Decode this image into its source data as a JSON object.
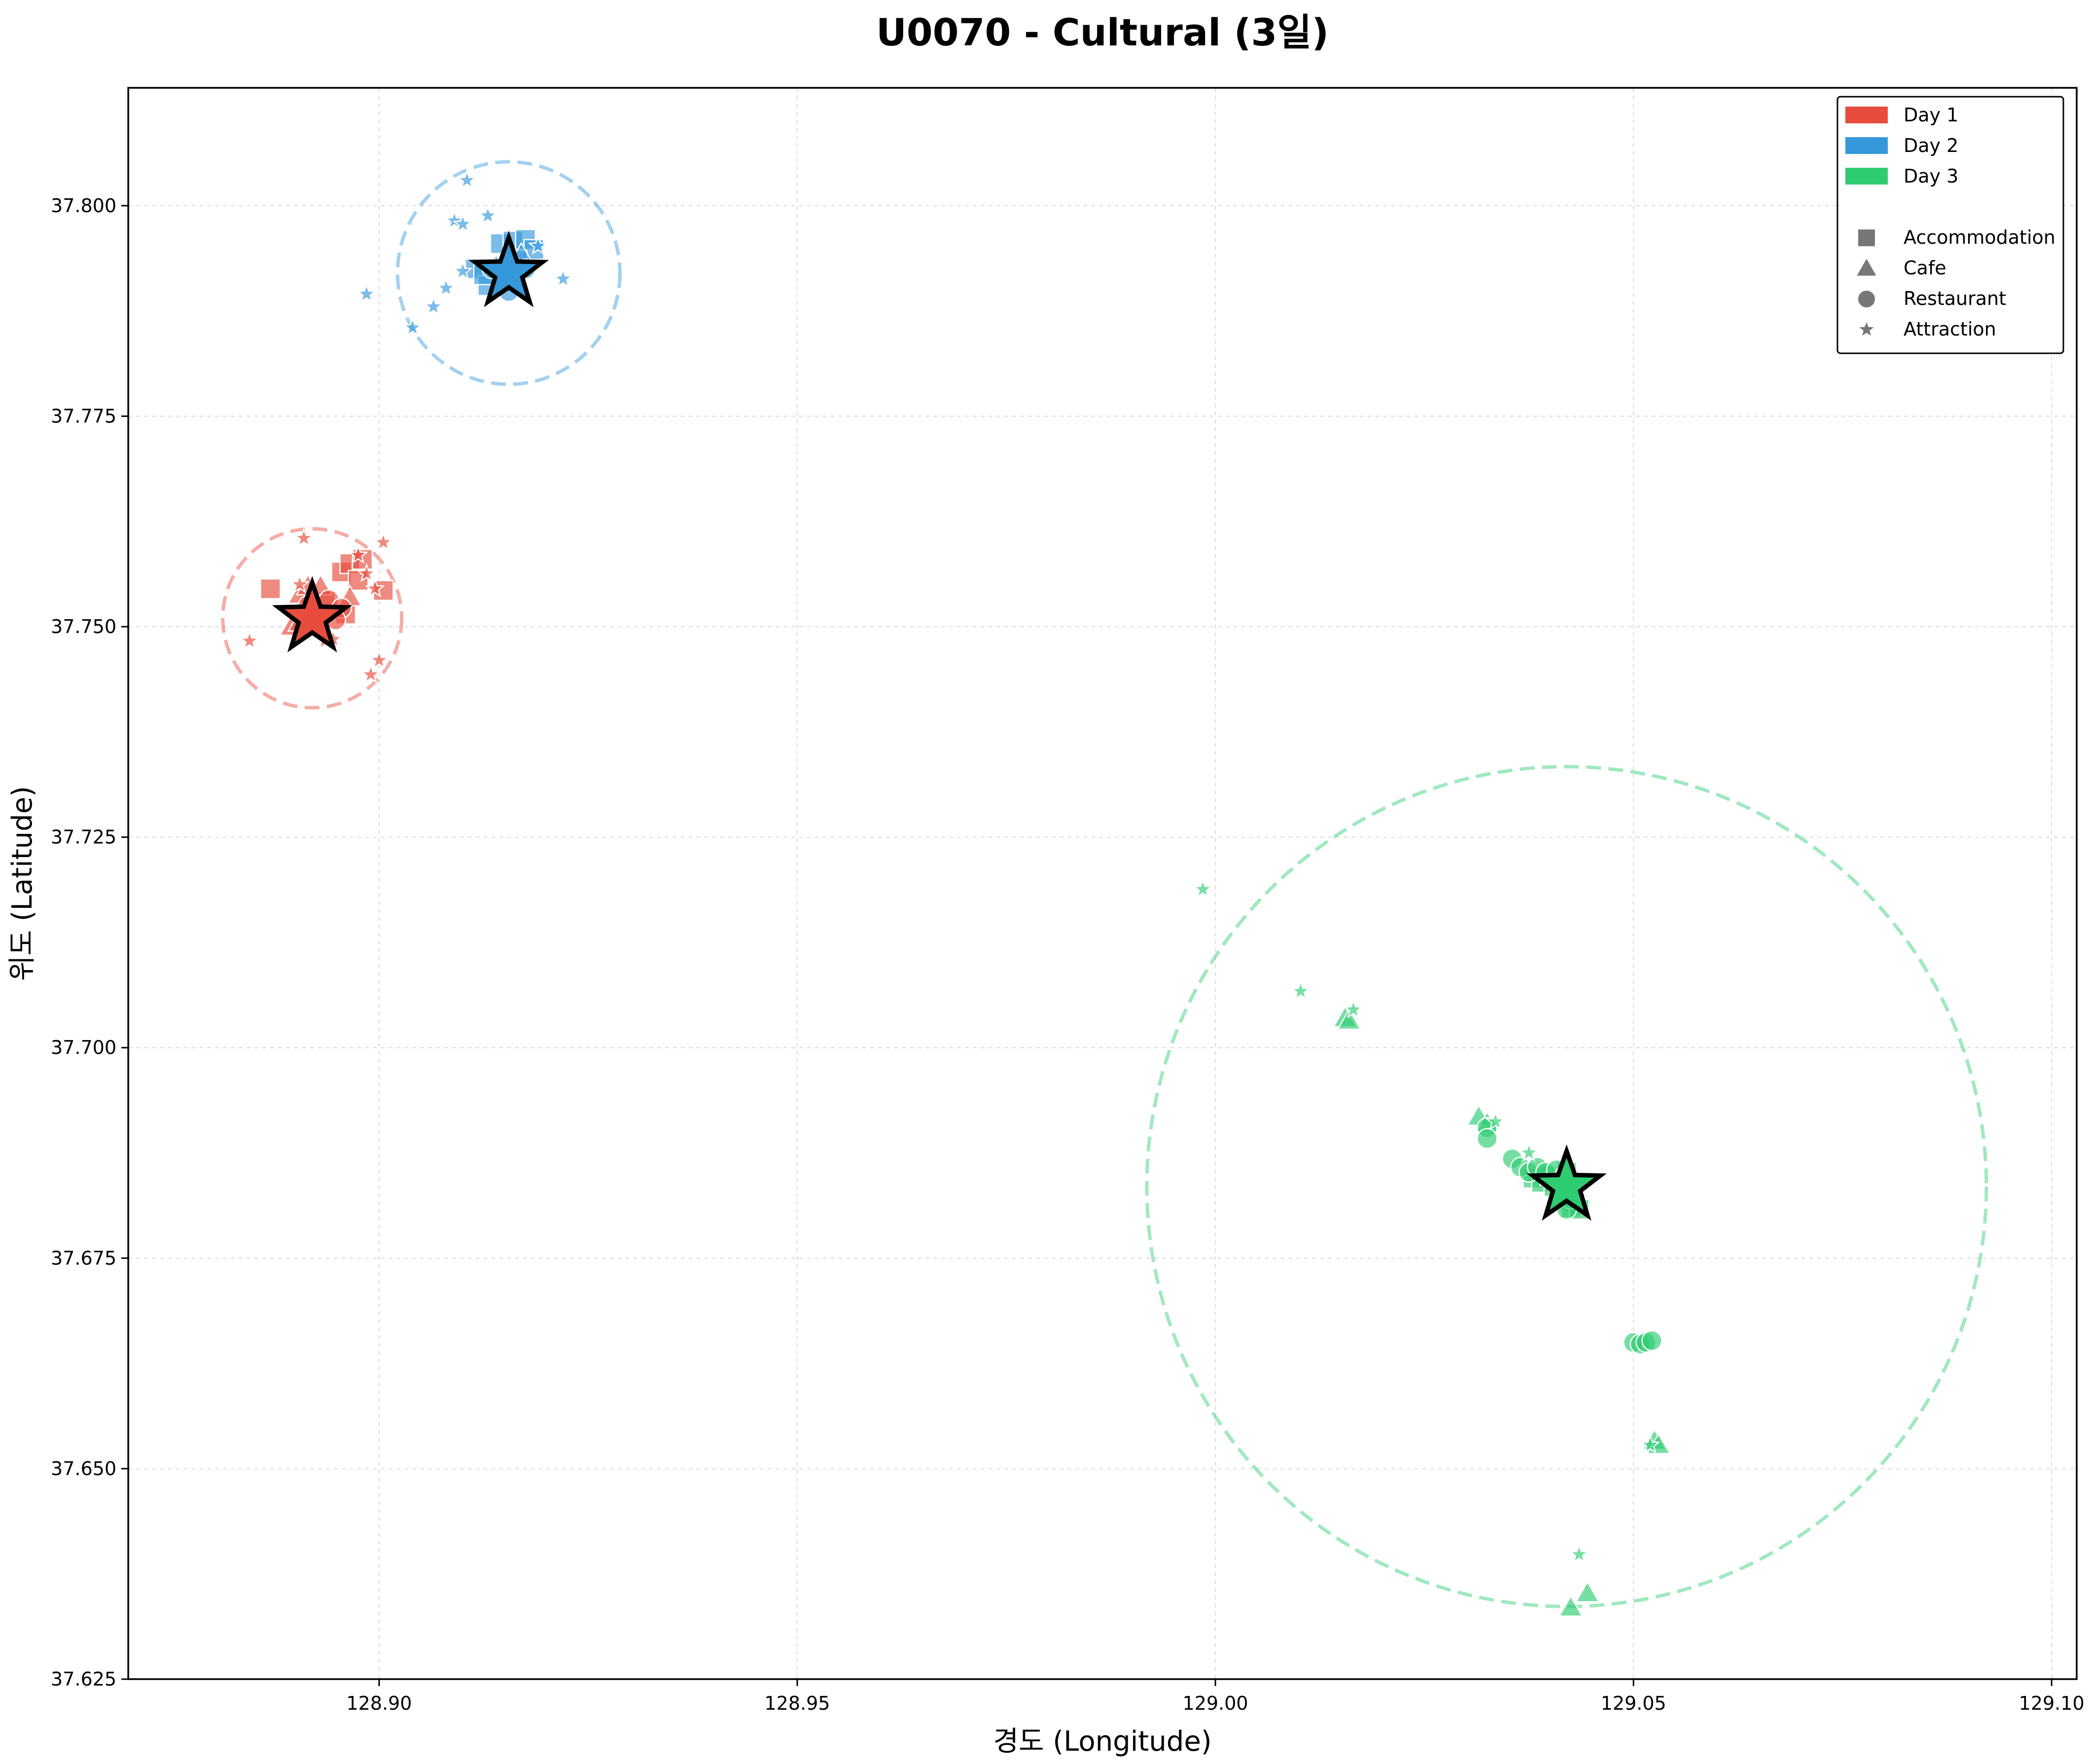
{
  "chart_data": {
    "type": "scatter",
    "title": "U0070 - Cultural (3일)",
    "xlabel": "경도 (Longitude)",
    "ylabel": "위도 (Latitude)",
    "xlim": [
      128.87,
      129.103
    ],
    "ylim": [
      37.625,
      37.814
    ],
    "x_ticks": [
      128.9,
      128.95,
      129.0,
      129.05,
      129.1
    ],
    "x_tick_labels": [
      "128.90",
      "128.95",
      "129.00",
      "129.05",
      "129.10"
    ],
    "y_ticks": [
      37.625,
      37.65,
      37.675,
      37.7,
      37.725,
      37.75,
      37.775,
      37.8
    ],
    "y_tick_labels": [
      "37.625",
      "37.650",
      "37.675",
      "37.700",
      "37.725",
      "37.750",
      "37.775",
      "37.800"
    ],
    "grid": true,
    "legend_position": "top-right",
    "legend": {
      "days": [
        {
          "label": "Day 1",
          "color": "#e74c3c"
        },
        {
          "label": "Day 2",
          "color": "#3498db"
        },
        {
          "label": "Day 3",
          "color": "#2ecc71"
        }
      ],
      "categories": [
        {
          "label": "Accommodation",
          "marker": "square"
        },
        {
          "label": "Cafe",
          "marker": "triangle"
        },
        {
          "label": "Restaurant",
          "marker": "circle"
        },
        {
          "label": "Attraction",
          "marker": "star"
        }
      ]
    },
    "series": [
      {
        "name": "Day 1",
        "color": "#e74c3c",
        "center": [
          128.892,
          37.751
        ],
        "radius_deg": 0.0107,
        "points": [
          {
            "cat": "Accommodation",
            "x": 128.887,
            "y": 37.7545
          },
          {
            "cat": "Accommodation",
            "x": 128.8955,
            "y": 37.7565
          },
          {
            "cat": "Accommodation",
            "x": 128.8965,
            "y": 37.7575
          },
          {
            "cat": "Accommodation",
            "x": 128.898,
            "y": 37.758
          },
          {
            "cat": "Accommodation",
            "x": 128.8975,
            "y": 37.7555
          },
          {
            "cat": "Accommodation",
            "x": 128.9005,
            "y": 37.7543
          },
          {
            "cat": "Accommodation",
            "x": 128.896,
            "y": 37.7515
          },
          {
            "cat": "Accommodation",
            "x": 128.8935,
            "y": 37.753
          },
          {
            "cat": "Cafe",
            "x": 128.8905,
            "y": 37.7538
          },
          {
            "cat": "Cafe",
            "x": 128.8915,
            "y": 37.7548
          },
          {
            "cat": "Cafe",
            "x": 128.893,
            "y": 37.7548
          },
          {
            "cat": "Cafe",
            "x": 128.8965,
            "y": 37.7535
          },
          {
            "cat": "Cafe",
            "x": 128.8895,
            "y": 37.75
          },
          {
            "cat": "Cafe",
            "x": 128.8905,
            "y": 37.7505
          },
          {
            "cat": "Restaurant",
            "x": 128.894,
            "y": 37.7532
          },
          {
            "cat": "Restaurant",
            "x": 128.8955,
            "y": 37.7522
          },
          {
            "cat": "Restaurant",
            "x": 128.8925,
            "y": 37.7515
          },
          {
            "cat": "Restaurant",
            "x": 128.8915,
            "y": 37.7525
          },
          {
            "cat": "Restaurant",
            "x": 128.8948,
            "y": 37.7508
          },
          {
            "cat": "Attraction",
            "x": 128.891,
            "y": 37.7605
          },
          {
            "cat": "Attraction",
            "x": 128.8975,
            "y": 37.7585
          },
          {
            "cat": "Attraction",
            "x": 128.9005,
            "y": 37.76
          },
          {
            "cat": "Attraction",
            "x": 128.8985,
            "y": 37.7563
          },
          {
            "cat": "Attraction",
            "x": 128.8995,
            "y": 37.7545
          },
          {
            "cat": "Attraction",
            "x": 128.8845,
            "y": 37.7483
          },
          {
            "cat": "Attraction",
            "x": 128.8935,
            "y": 37.7483
          },
          {
            "cat": "Attraction",
            "x": 128.8945,
            "y": 37.7485
          },
          {
            "cat": "Attraction",
            "x": 128.9,
            "y": 37.746
          },
          {
            "cat": "Attraction",
            "x": 128.899,
            "y": 37.7443
          },
          {
            "cat": "Attraction",
            "x": 128.8905,
            "y": 37.755
          }
        ]
      },
      {
        "name": "Day 2",
        "color": "#3498db",
        "center": [
          128.9155,
          37.792
        ],
        "radius_deg": 0.0133,
        "points": [
          {
            "cat": "Accommodation",
            "x": 128.9115,
            "y": 37.7925
          },
          {
            "cat": "Accommodation",
            "x": 128.913,
            "y": 37.7905
          },
          {
            "cat": "Accommodation",
            "x": 128.9145,
            "y": 37.7955
          },
          {
            "cat": "Accommodation",
            "x": 128.916,
            "y": 37.7958
          },
          {
            "cat": "Accommodation",
            "x": 128.9175,
            "y": 37.796
          },
          {
            "cat": "Accommodation",
            "x": 128.9185,
            "y": 37.7948
          },
          {
            "cat": "Accommodation",
            "x": 128.9165,
            "y": 37.7935
          },
          {
            "cat": "Accommodation",
            "x": 128.9125,
            "y": 37.7918
          },
          {
            "cat": "Cafe",
            "x": 128.9155,
            "y": 37.7945
          },
          {
            "cat": "Cafe",
            "x": 128.917,
            "y": 37.7942
          },
          {
            "cat": "Cafe",
            "x": 128.914,
            "y": 37.7928
          },
          {
            "cat": "Restaurant",
            "x": 128.9135,
            "y": 37.7925
          },
          {
            "cat": "Restaurant",
            "x": 128.915,
            "y": 37.7912
          },
          {
            "cat": "Restaurant",
            "x": 128.9155,
            "y": 37.7898
          },
          {
            "cat": "Restaurant",
            "x": 128.9175,
            "y": 37.7925
          },
          {
            "cat": "Attraction",
            "x": 128.9105,
            "y": 37.803
          },
          {
            "cat": "Attraction",
            "x": 128.913,
            "y": 37.7988
          },
          {
            "cat": "Attraction",
            "x": 128.909,
            "y": 37.7982
          },
          {
            "cat": "Attraction",
            "x": 128.91,
            "y": 37.7978
          },
          {
            "cat": "Attraction",
            "x": 128.8985,
            "y": 37.7895
          },
          {
            "cat": "Attraction",
            "x": 128.904,
            "y": 37.7855
          },
          {
            "cat": "Attraction",
            "x": 128.9065,
            "y": 37.788
          },
          {
            "cat": "Attraction",
            "x": 128.908,
            "y": 37.7902
          },
          {
            "cat": "Attraction",
            "x": 128.91,
            "y": 37.7922
          },
          {
            "cat": "Attraction",
            "x": 128.919,
            "y": 37.7952
          },
          {
            "cat": "Attraction",
            "x": 128.922,
            "y": 37.7913
          }
        ]
      },
      {
        "name": "Day 3",
        "color": "#2ecc71",
        "center": [
          129.042,
          37.6835
        ],
        "radius_deg": 0.0502,
        "points": [
          {
            "cat": "Accommodation",
            "x": 129.038,
            "y": 37.6845
          },
          {
            "cat": "Accommodation",
            "x": 129.039,
            "y": 37.684
          },
          {
            "cat": "Accommodation",
            "x": 129.04,
            "y": 37.6848
          },
          {
            "cat": "Accommodation",
            "x": 129.041,
            "y": 37.684
          },
          {
            "cat": "Accommodation",
            "x": 129.042,
            "y": 37.6852
          },
          {
            "cat": "Accommodation",
            "x": 129.042,
            "y": 37.6838
          },
          {
            "cat": "Accommodation",
            "x": 129.043,
            "y": 37.6815
          },
          {
            "cat": "Accommodation",
            "x": 129.0425,
            "y": 37.681
          },
          {
            "cat": "Accommodation",
            "x": 129.0435,
            "y": 37.6808
          },
          {
            "cat": "Accommodation",
            "x": 129.0405,
            "y": 37.6835
          },
          {
            "cat": "Cafe",
            "x": 129.0315,
            "y": 37.6918
          },
          {
            "cat": "Cafe",
            "x": 129.0325,
            "y": 37.691
          },
          {
            "cat": "Cafe",
            "x": 129.0155,
            "y": 37.7035
          },
          {
            "cat": "Cafe",
            "x": 129.016,
            "y": 37.7032
          },
          {
            "cat": "Cafe",
            "x": 129.0525,
            "y": 37.6533
          },
          {
            "cat": "Cafe",
            "x": 129.053,
            "y": 37.6528
          },
          {
            "cat": "Cafe",
            "x": 129.0445,
            "y": 37.6352
          },
          {
            "cat": "Cafe",
            "x": 129.0425,
            "y": 37.6335
          },
          {
            "cat": "Restaurant",
            "x": 129.0325,
            "y": 37.6905
          },
          {
            "cat": "Restaurant",
            "x": 129.0325,
            "y": 37.6892
          },
          {
            "cat": "Restaurant",
            "x": 129.0355,
            "y": 37.6868
          },
          {
            "cat": "Restaurant",
            "x": 129.0365,
            "y": 37.6858
          },
          {
            "cat": "Restaurant",
            "x": 129.0375,
            "y": 37.6852
          },
          {
            "cat": "Restaurant",
            "x": 129.0385,
            "y": 37.6858
          },
          {
            "cat": "Restaurant",
            "x": 129.0395,
            "y": 37.6852
          },
          {
            "cat": "Restaurant",
            "x": 129.0408,
            "y": 37.6855
          },
          {
            "cat": "Restaurant",
            "x": 129.0418,
            "y": 37.6848
          },
          {
            "cat": "Restaurant",
            "x": 129.0425,
            "y": 37.682
          },
          {
            "cat": "Restaurant",
            "x": 129.042,
            "y": 37.6808
          },
          {
            "cat": "Restaurant",
            "x": 129.05,
            "y": 37.665
          },
          {
            "cat": "Restaurant",
            "x": 129.0508,
            "y": 37.6648
          },
          {
            "cat": "Restaurant",
            "x": 129.0515,
            "y": 37.665
          },
          {
            "cat": "Restaurant",
            "x": 129.0522,
            "y": 37.6652
          },
          {
            "cat": "Attraction",
            "x": 128.9985,
            "y": 37.7188
          },
          {
            "cat": "Attraction",
            "x": 129.0102,
            "y": 37.7067
          },
          {
            "cat": "Attraction",
            "x": 129.0165,
            "y": 37.7045
          },
          {
            "cat": "Attraction",
            "x": 129.0335,
            "y": 37.6912
          },
          {
            "cat": "Attraction",
            "x": 129.0375,
            "y": 37.6875
          },
          {
            "cat": "Attraction",
            "x": 129.0435,
            "y": 37.6398
          },
          {
            "cat": "Attraction",
            "x": 129.052,
            "y": 37.6528
          }
        ]
      }
    ]
  }
}
